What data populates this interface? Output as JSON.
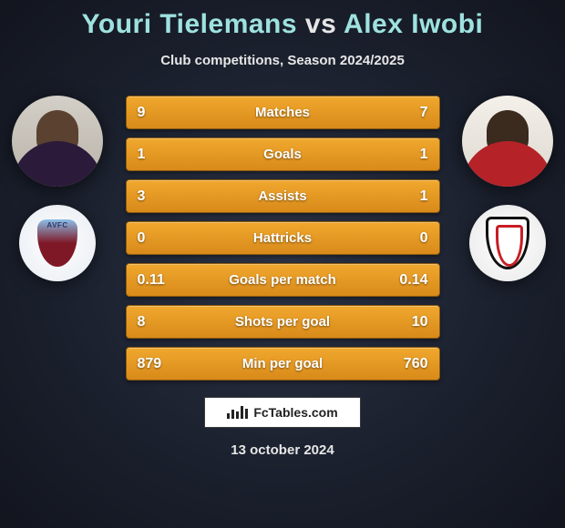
{
  "title": {
    "player1": "Youri Tielemans",
    "vs": "vs",
    "player2": "Alex Iwobi"
  },
  "subtitle": "Club competitions, Season 2024/2025",
  "players": {
    "left": {
      "crest_label": "AVFC"
    },
    "right": {
      "crest_label": "FFC"
    }
  },
  "stats": {
    "rows": [
      {
        "label": "Matches",
        "left": "9",
        "right": "7"
      },
      {
        "label": "Goals",
        "left": "1",
        "right": "1"
      },
      {
        "label": "Assists",
        "left": "3",
        "right": "1"
      },
      {
        "label": "Hattricks",
        "left": "0",
        "right": "0"
      },
      {
        "label": "Goals per match",
        "left": "0.11",
        "right": "0.14"
      },
      {
        "label": "Shots per goal",
        "left": "8",
        "right": "10"
      },
      {
        "label": "Min per goal",
        "left": "879",
        "right": "760"
      }
    ],
    "bar_gradient_top": "#f0a82e",
    "bar_gradient_bottom": "#d98a1a",
    "bar_border": "#8a5a10",
    "label_fontsize": 15,
    "value_fontsize": 16,
    "text_color": "#ffffff"
  },
  "logo_text": "FcTables.com",
  "date": "13 october 2024",
  "colors": {
    "background_center": "#2a3244",
    "background_edge": "#12151e",
    "title_player_color": "#9ee2e0",
    "title_vs_color": "#e6e6e6"
  }
}
